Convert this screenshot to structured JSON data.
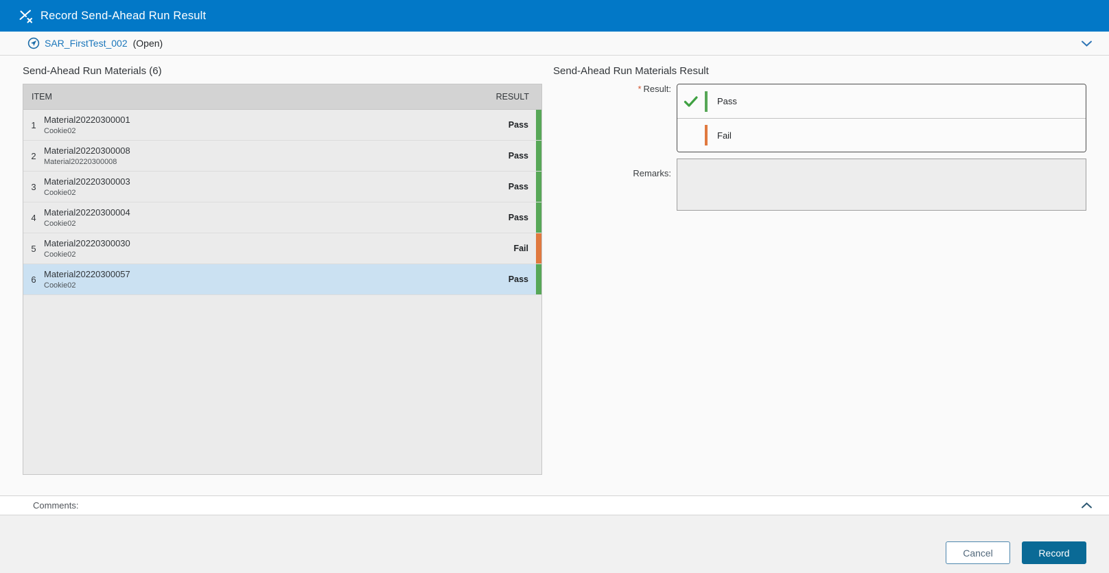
{
  "colors": {
    "header_blue": "#0278c7",
    "link_blue": "#1a76bb",
    "pass_green": "#57a757",
    "fail_orange": "#e0793f",
    "selected_row_blue": "#cbe1f2",
    "record_button_blue": "#0a6a96"
  },
  "header": {
    "title": "Record Send-Ahead Run Result",
    "icon": "record-result-icon"
  },
  "context_bar": {
    "run_link": "SAR_FirstTest_002",
    "status": "(Open)",
    "collapse_icon": "chevron-down-icon"
  },
  "materials_panel": {
    "title": "Send-Ahead Run Materials (6)",
    "columns": {
      "item": "ITEM",
      "result": "RESULT"
    },
    "rows": [
      {
        "num": "1",
        "name": "Material20220300001",
        "sub": "Cookie02",
        "result": "Pass",
        "selected": false
      },
      {
        "num": "2",
        "name": "Material20220300008",
        "sub": "Material20220300008",
        "result": "Pass",
        "selected": false
      },
      {
        "num": "3",
        "name": "Material20220300003",
        "sub": "Cookie02",
        "result": "Pass",
        "selected": false
      },
      {
        "num": "4",
        "name": "Material20220300004",
        "sub": "Cookie02",
        "result": "Pass",
        "selected": false
      },
      {
        "num": "5",
        "name": "Material20220300030",
        "sub": "Cookie02",
        "result": "Fail",
        "selected": false
      },
      {
        "num": "6",
        "name": "Material20220300057",
        "sub": "Cookie02",
        "result": "Pass",
        "selected": true
      }
    ]
  },
  "result_panel": {
    "title": "Send-Ahead Run Materials Result",
    "result_field": {
      "required_mark": "*",
      "label": "Result:",
      "options": [
        {
          "label": "Pass",
          "selected": true,
          "kind": "pass"
        },
        {
          "label": "Fail",
          "selected": false,
          "kind": "fail"
        }
      ]
    },
    "remarks_field": {
      "label": "Remarks:",
      "value": ""
    }
  },
  "comments_bar": {
    "label": "Comments:",
    "collapse_icon": "chevron-up-icon"
  },
  "footer": {
    "cancel_label": "Cancel",
    "record_label": "Record"
  }
}
